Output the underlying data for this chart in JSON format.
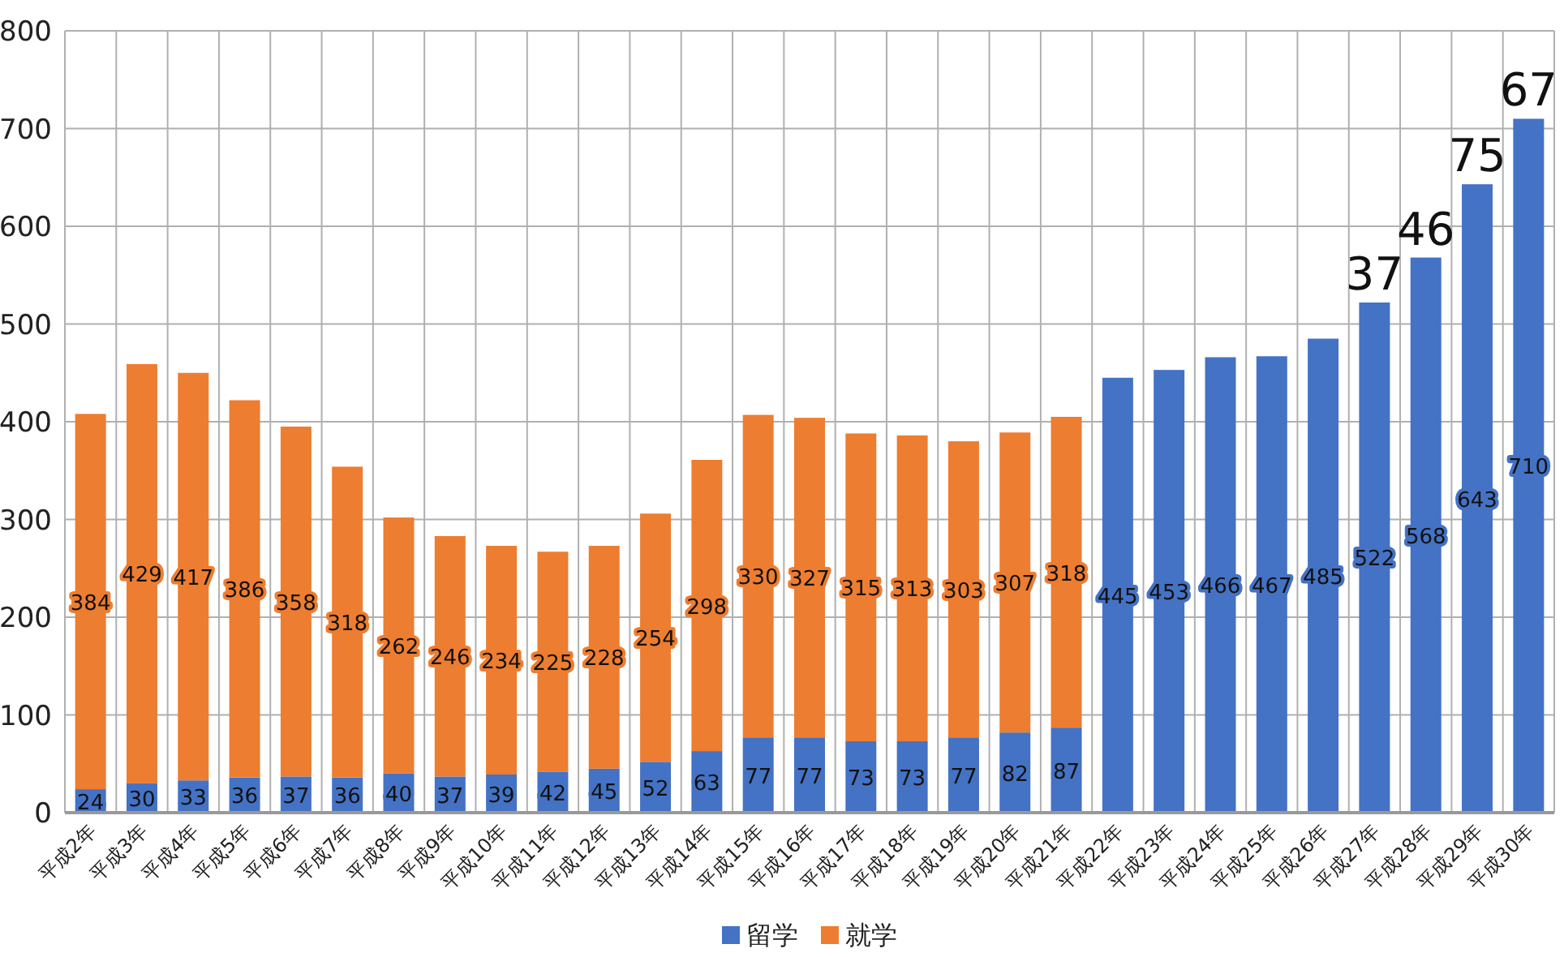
{
  "chart_data": {
    "type": "bar",
    "stacked": true,
    "categories": [
      "平成2年",
      "平成3年",
      "平成4年",
      "平成5年",
      "平成6年",
      "平成7年",
      "平成8年",
      "平成9年",
      "平成10年",
      "平成11年",
      "平成12年",
      "平成13年",
      "平成14年",
      "平成15年",
      "平成16年",
      "平成17年",
      "平成18年",
      "平成19年",
      "平成20年",
      "平成21年",
      "平成22年",
      "平成23年",
      "平成24年",
      "平成25年",
      "平成26年",
      "平成27年",
      "平成28年",
      "平成29年",
      "平成30年"
    ],
    "series": [
      {
        "name": "留学",
        "color": "#4472c4",
        "values": [
          24,
          30,
          33,
          36,
          37,
          36,
          40,
          37,
          39,
          42,
          45,
          52,
          63,
          77,
          77,
          73,
          73,
          77,
          82,
          87,
          445,
          453,
          466,
          467,
          485,
          522,
          568,
          643,
          710
        ]
      },
      {
        "name": "就学",
        "color": "#ed7d31",
        "values": [
          384,
          429,
          417,
          386,
          358,
          318,
          262,
          246,
          234,
          225,
          228,
          254,
          298,
          330,
          327,
          315,
          313,
          303,
          307,
          318,
          null,
          null,
          null,
          null,
          null,
          null,
          null,
          null,
          null
        ]
      }
    ],
    "ylim": [
      0,
      800
    ],
    "yticks": [
      0,
      100,
      200,
      300,
      400,
      500,
      600,
      700,
      800
    ],
    "grid": true,
    "legend": "bottom",
    "data_labels": true,
    "annotations": [
      "37",
      "46",
      "75",
      "67"
    ]
  }
}
